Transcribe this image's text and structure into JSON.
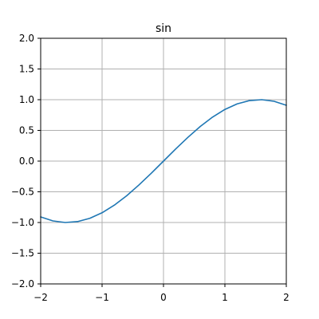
{
  "chart_data": {
    "type": "line",
    "title": "sin",
    "xlabel": "",
    "ylabel": "",
    "xlim": [
      -2,
      2
    ],
    "ylim": [
      -2,
      2
    ],
    "grid": true,
    "x_ticks": [
      -2,
      -1,
      0,
      1,
      2
    ],
    "x_tick_labels": [
      "−2",
      "−1",
      "0",
      "1",
      "2"
    ],
    "y_ticks": [
      -2.0,
      -1.5,
      -1.0,
      -0.5,
      0.0,
      0.5,
      1.0,
      1.5,
      2.0
    ],
    "y_tick_labels": [
      "−2.0",
      "−1.5",
      "−1.0",
      "−0.5",
      "0.0",
      "0.5",
      "1.0",
      "1.5",
      "2.0"
    ],
    "series": [
      {
        "color": "#1f77b4",
        "x": [
          -2.0,
          -1.8,
          -1.6,
          -1.4,
          -1.2,
          -1.0,
          -0.8,
          -0.6,
          -0.4,
          -0.2,
          0.0,
          0.2,
          0.4,
          0.6,
          0.8,
          1.0,
          1.2,
          1.4,
          1.6,
          1.8,
          2.0
        ],
        "y": [
          -0.909,
          -0.974,
          -1.0,
          -0.985,
          -0.932,
          -0.841,
          -0.717,
          -0.565,
          -0.389,
          -0.199,
          0.0,
          0.199,
          0.389,
          0.565,
          0.717,
          0.841,
          0.932,
          0.985,
          1.0,
          0.974,
          0.909
        ]
      }
    ],
    "colors": {
      "grid": "#b0b0b0",
      "axes": "#000000",
      "line": "#1f77b4"
    }
  }
}
